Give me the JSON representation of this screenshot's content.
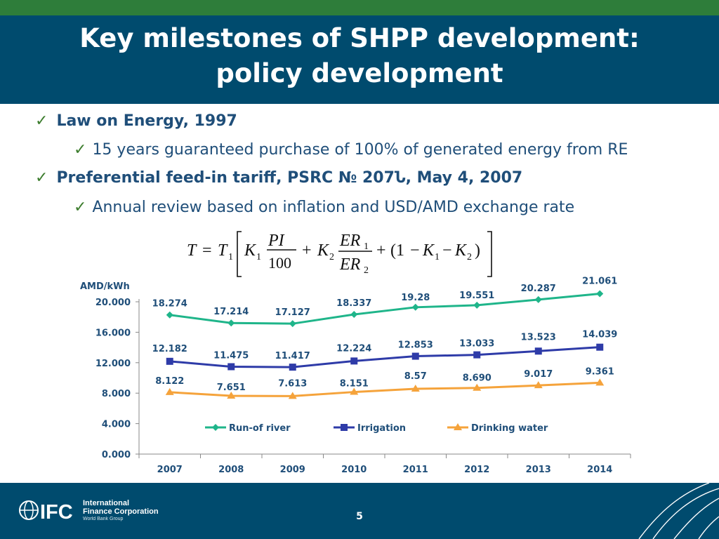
{
  "slide": {
    "title_line1": "Key milestones of SHPP development:",
    "title_line2": "policy development",
    "page_number": "5"
  },
  "bullets": [
    {
      "level": 1,
      "text": "Law on Energy, 1997"
    },
    {
      "level": 2,
      "text": "15 years guaranteed purchase of 100% of generated energy from RE"
    },
    {
      "level": 1,
      "text": "Preferential feed-in tariff, PSRC № 207Ն, May 4, 2007"
    },
    {
      "level": 2,
      "text": "Annual review based on inflation and USD/AMD exchange rate"
    }
  ],
  "formula": {
    "T": "T",
    "T1": "T",
    "K": "K",
    "PI": "PI",
    "d100": "100",
    "ER": "ER",
    "one": "(1",
    "sub1": "1",
    "sub2": "2",
    "eq": "=",
    "plus": "+",
    "minus": "−",
    "close": ")"
  },
  "chart_data": {
    "type": "line",
    "ylabel": "AMD/kWh",
    "x": [
      "2007",
      "2008",
      "2009",
      "2010",
      "2011",
      "2012",
      "2013",
      "2014"
    ],
    "ylim": [
      0,
      20
    ],
    "yticks": [
      "0.000",
      "4.000",
      "8.000",
      "12.000",
      "16.000",
      "20.000"
    ],
    "grid": false,
    "legend": "inside-bottom",
    "series": [
      {
        "name": "Run-of river",
        "color": "#1fb58a",
        "marker": "diamond",
        "values": [
          18.274,
          17.214,
          17.127,
          18.337,
          19.28,
          19.551,
          20.287,
          21.061
        ],
        "labels": [
          "18.274",
          "17.214",
          "17.127",
          "18.337",
          "19.28",
          "19.551",
          "20.287",
          "21.061"
        ]
      },
      {
        "name": "Irrigation",
        "color": "#2e3ba8",
        "marker": "square",
        "values": [
          12.182,
          11.475,
          11.417,
          12.224,
          12.853,
          13.033,
          13.523,
          14.039
        ],
        "labels": [
          "12.182",
          "11.475",
          "11.417",
          "12.224",
          "12.853",
          "13.033",
          "13.523",
          "14.039"
        ]
      },
      {
        "name": "Drinking water",
        "color": "#f5a33b",
        "marker": "triangle",
        "values": [
          8.122,
          7.651,
          7.613,
          8.151,
          8.57,
          8.69,
          9.017,
          9.361
        ],
        "labels": [
          "8.122",
          "7.651",
          "7.613",
          "8.151",
          "8.57",
          "8.690",
          "9.017",
          "9.361"
        ]
      }
    ]
  },
  "footer": {
    "logo_mark": "IFC",
    "org_line1": "International",
    "org_line2": "Finance Corporation",
    "org_line3": "World Bank Group"
  },
  "colors": {
    "top_band": "#2e7d3a",
    "title_band": "#004b6e",
    "bullet_text": "#1f4e79",
    "checkmark": "#3d7d2e"
  },
  "icons": {
    "bullet": "checkmark-icon",
    "logo": "ifc-globe-logo"
  }
}
